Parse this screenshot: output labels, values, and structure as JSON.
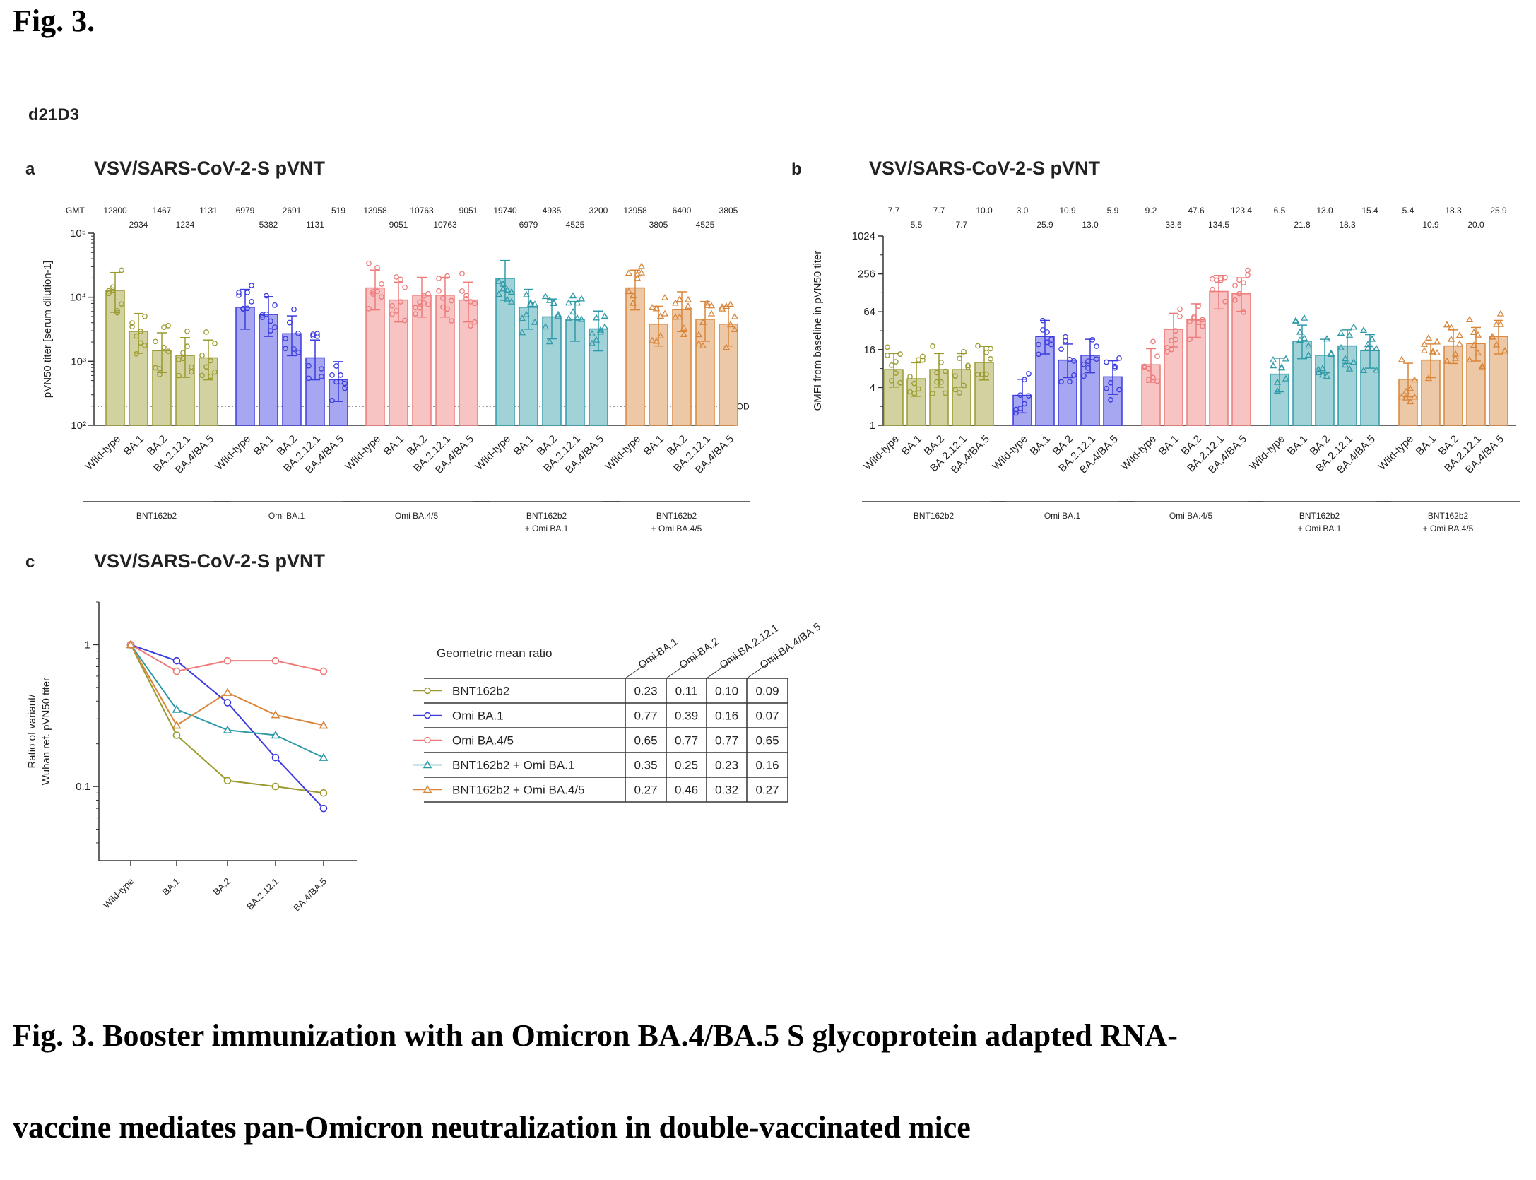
{
  "figure_header": "Fig. 3.",
  "group_label": "d21D3",
  "caption_line1": "Fig. 3. Booster immunization with an Omicron BA.4/BA.5 S glycoprotein adapted RNA-",
  "caption_line2": "vaccine mediates pan-Omicron neutralization in double-vaccinated mice",
  "colors": {
    "BNT162b2": "#9a9a2e",
    "Omi BA.1": "#3b3be0",
    "Omi BA.4/5": "#ee7a7a",
    "BNT162b2 + Omi BA.1": "#2e9aa8",
    "BNT162b2 + Omi BA.4/5": "#d8853a"
  },
  "chart_data": [
    {
      "panel": "a",
      "type": "bar",
      "title": "VSV/SARS-CoV-2-S pVNT",
      "ylabel": "pVN50 titer [serum dilution-1]",
      "yscale": "log10",
      "ylim": [
        100,
        100000
      ],
      "yticks": [
        "10²",
        "10³",
        "10⁴",
        "10⁵"
      ],
      "gmt_label": "GMT",
      "lod_label": "LOD",
      "lod_value": 200,
      "categories": [
        "Wild-type",
        "BA.1",
        "BA.2",
        "BA.2.12.1",
        "BA.4/BA.5"
      ],
      "series": [
        {
          "name": "BNT162b2",
          "values": [
            12800,
            2934,
            1467,
            1234,
            1131
          ],
          "labels": [
            "12800",
            "2934",
            "1467",
            "1234",
            "1131"
          ]
        },
        {
          "name": "Omi BA.1",
          "values": [
            6979,
            5382,
            2691,
            1131,
            519
          ],
          "labels": [
            "6979",
            "5382",
            "2691",
            "1131",
            "519"
          ]
        },
        {
          "name": "Omi BA.4/5",
          "values": [
            13958,
            9051,
            10763,
            10763,
            9051
          ],
          "labels": [
            "13958",
            "9051",
            "10763",
            "10763",
            "9051"
          ]
        },
        {
          "name": "BNT162b2\n+ Omi BA.1",
          "values": [
            19740,
            6979,
            4935,
            4525,
            3200
          ],
          "labels": [
            "19740",
            "6979",
            "4935",
            "4525",
            "3200"
          ]
        },
        {
          "name": "BNT162b2\n+ Omi BA.4/5",
          "values": [
            13958,
            3805,
            6400,
            4525,
            3805
          ],
          "labels": [
            "13958",
            "3805",
            "6400",
            "4525",
            "3805"
          ]
        }
      ]
    },
    {
      "panel": "b",
      "type": "bar",
      "title": "VSV/SARS-CoV-2-S pVNT",
      "ylabel": "GMFI from baseline in pVN50 titer",
      "yscale": "log2",
      "ylim": [
        1,
        1024
      ],
      "yticks": [
        "1",
        "4",
        "16",
        "64",
        "256",
        "1024"
      ],
      "categories": [
        "Wild-type",
        "BA.1",
        "BA.2",
        "BA.2.12.1",
        "BA.4/BA.5"
      ],
      "series": [
        {
          "name": "BNT162b2",
          "values": [
            7.7,
            5.5,
            7.7,
            7.7,
            10.0
          ],
          "labels": [
            "7.7",
            "5.5",
            "7.7",
            "7.7",
            "10.0"
          ]
        },
        {
          "name": "Omi BA.1",
          "values": [
            3.0,
            25.9,
            10.9,
            13.0,
            5.9
          ],
          "labels": [
            "3.0",
            "25.9",
            "10.9",
            "13.0",
            "5.9"
          ]
        },
        {
          "name": "Omi BA.4/5",
          "values": [
            9.2,
            33.6,
            47.6,
            134.5,
            123.4
          ],
          "labels": [
            "9.2",
            "33.6",
            "47.6",
            "134.5",
            "123.4"
          ]
        },
        {
          "name": "BNT162b2\n+ Omi BA.1",
          "values": [
            6.5,
            21.8,
            13.0,
            18.3,
            15.4
          ],
          "labels": [
            "6.5",
            "21.8",
            "13.0",
            "18.3",
            "15.4"
          ]
        },
        {
          "name": "BNT162b2\n+ Omi BA.4/5",
          "values": [
            5.4,
            10.9,
            18.3,
            20.0,
            25.9
          ],
          "labels": [
            "5.4",
            "10.9",
            "18.3",
            "20.0",
            "25.9"
          ]
        }
      ]
    },
    {
      "panel": "c",
      "type": "line",
      "title": "VSV/SARS-CoV-2-S pVNT",
      "ylabel": "Ratio of variant/\nWuhan ref. pVN50 titer",
      "yscale": "log10",
      "ylim": [
        0.03,
        2
      ],
      "yticks": [
        "0.1",
        "1"
      ],
      "categories": [
        "Wild-type",
        "BA.1",
        "BA.2",
        "BA.2.12.1",
        "BA.4/BA.5"
      ],
      "series": [
        {
          "name": "BNT162b2",
          "values": [
            1,
            0.23,
            0.11,
            0.1,
            0.09
          ],
          "marker": "circle"
        },
        {
          "name": "Omi BA.1",
          "values": [
            1,
            0.77,
            0.39,
            0.16,
            0.07
          ],
          "marker": "circle"
        },
        {
          "name": "Omi BA.4/5",
          "values": [
            1,
            0.65,
            0.77,
            0.77,
            0.65
          ],
          "marker": "circle"
        },
        {
          "name": "BNT162b2 + Omi BA.1",
          "values": [
            1,
            0.35,
            0.25,
            0.23,
            0.16
          ],
          "marker": "triangle"
        },
        {
          "name": "BNT162b2 + Omi BA.4/5",
          "values": [
            1,
            0.27,
            0.46,
            0.32,
            0.27
          ],
          "marker": "triangle"
        }
      ]
    },
    {
      "panel": "c-table",
      "type": "table",
      "title": "Geometric mean ratio",
      "columns": [
        "Omi BA.1",
        "Omi BA.2",
        "Omi BA.2.12.1",
        "Omi BA.4/BA.5"
      ],
      "rows": [
        {
          "name": "BNT162b2",
          "cells": [
            "0.23",
            "0.11",
            "0.10",
            "0.09"
          ]
        },
        {
          "name": "Omi BA.1",
          "cells": [
            "0.77",
            "0.39",
            "0.16",
            "0.07"
          ]
        },
        {
          "name": "Omi BA.4/5",
          "cells": [
            "0.65",
            "0.77",
            "0.77",
            "0.65"
          ]
        },
        {
          "name": "BNT162b2 + Omi BA.1",
          "cells": [
            "0.35",
            "0.25",
            "0.23",
            "0.16"
          ]
        },
        {
          "name": "BNT162b2 + Omi BA.4/5",
          "cells": [
            "0.27",
            "0.46",
            "0.32",
            "0.27"
          ]
        }
      ]
    }
  ]
}
